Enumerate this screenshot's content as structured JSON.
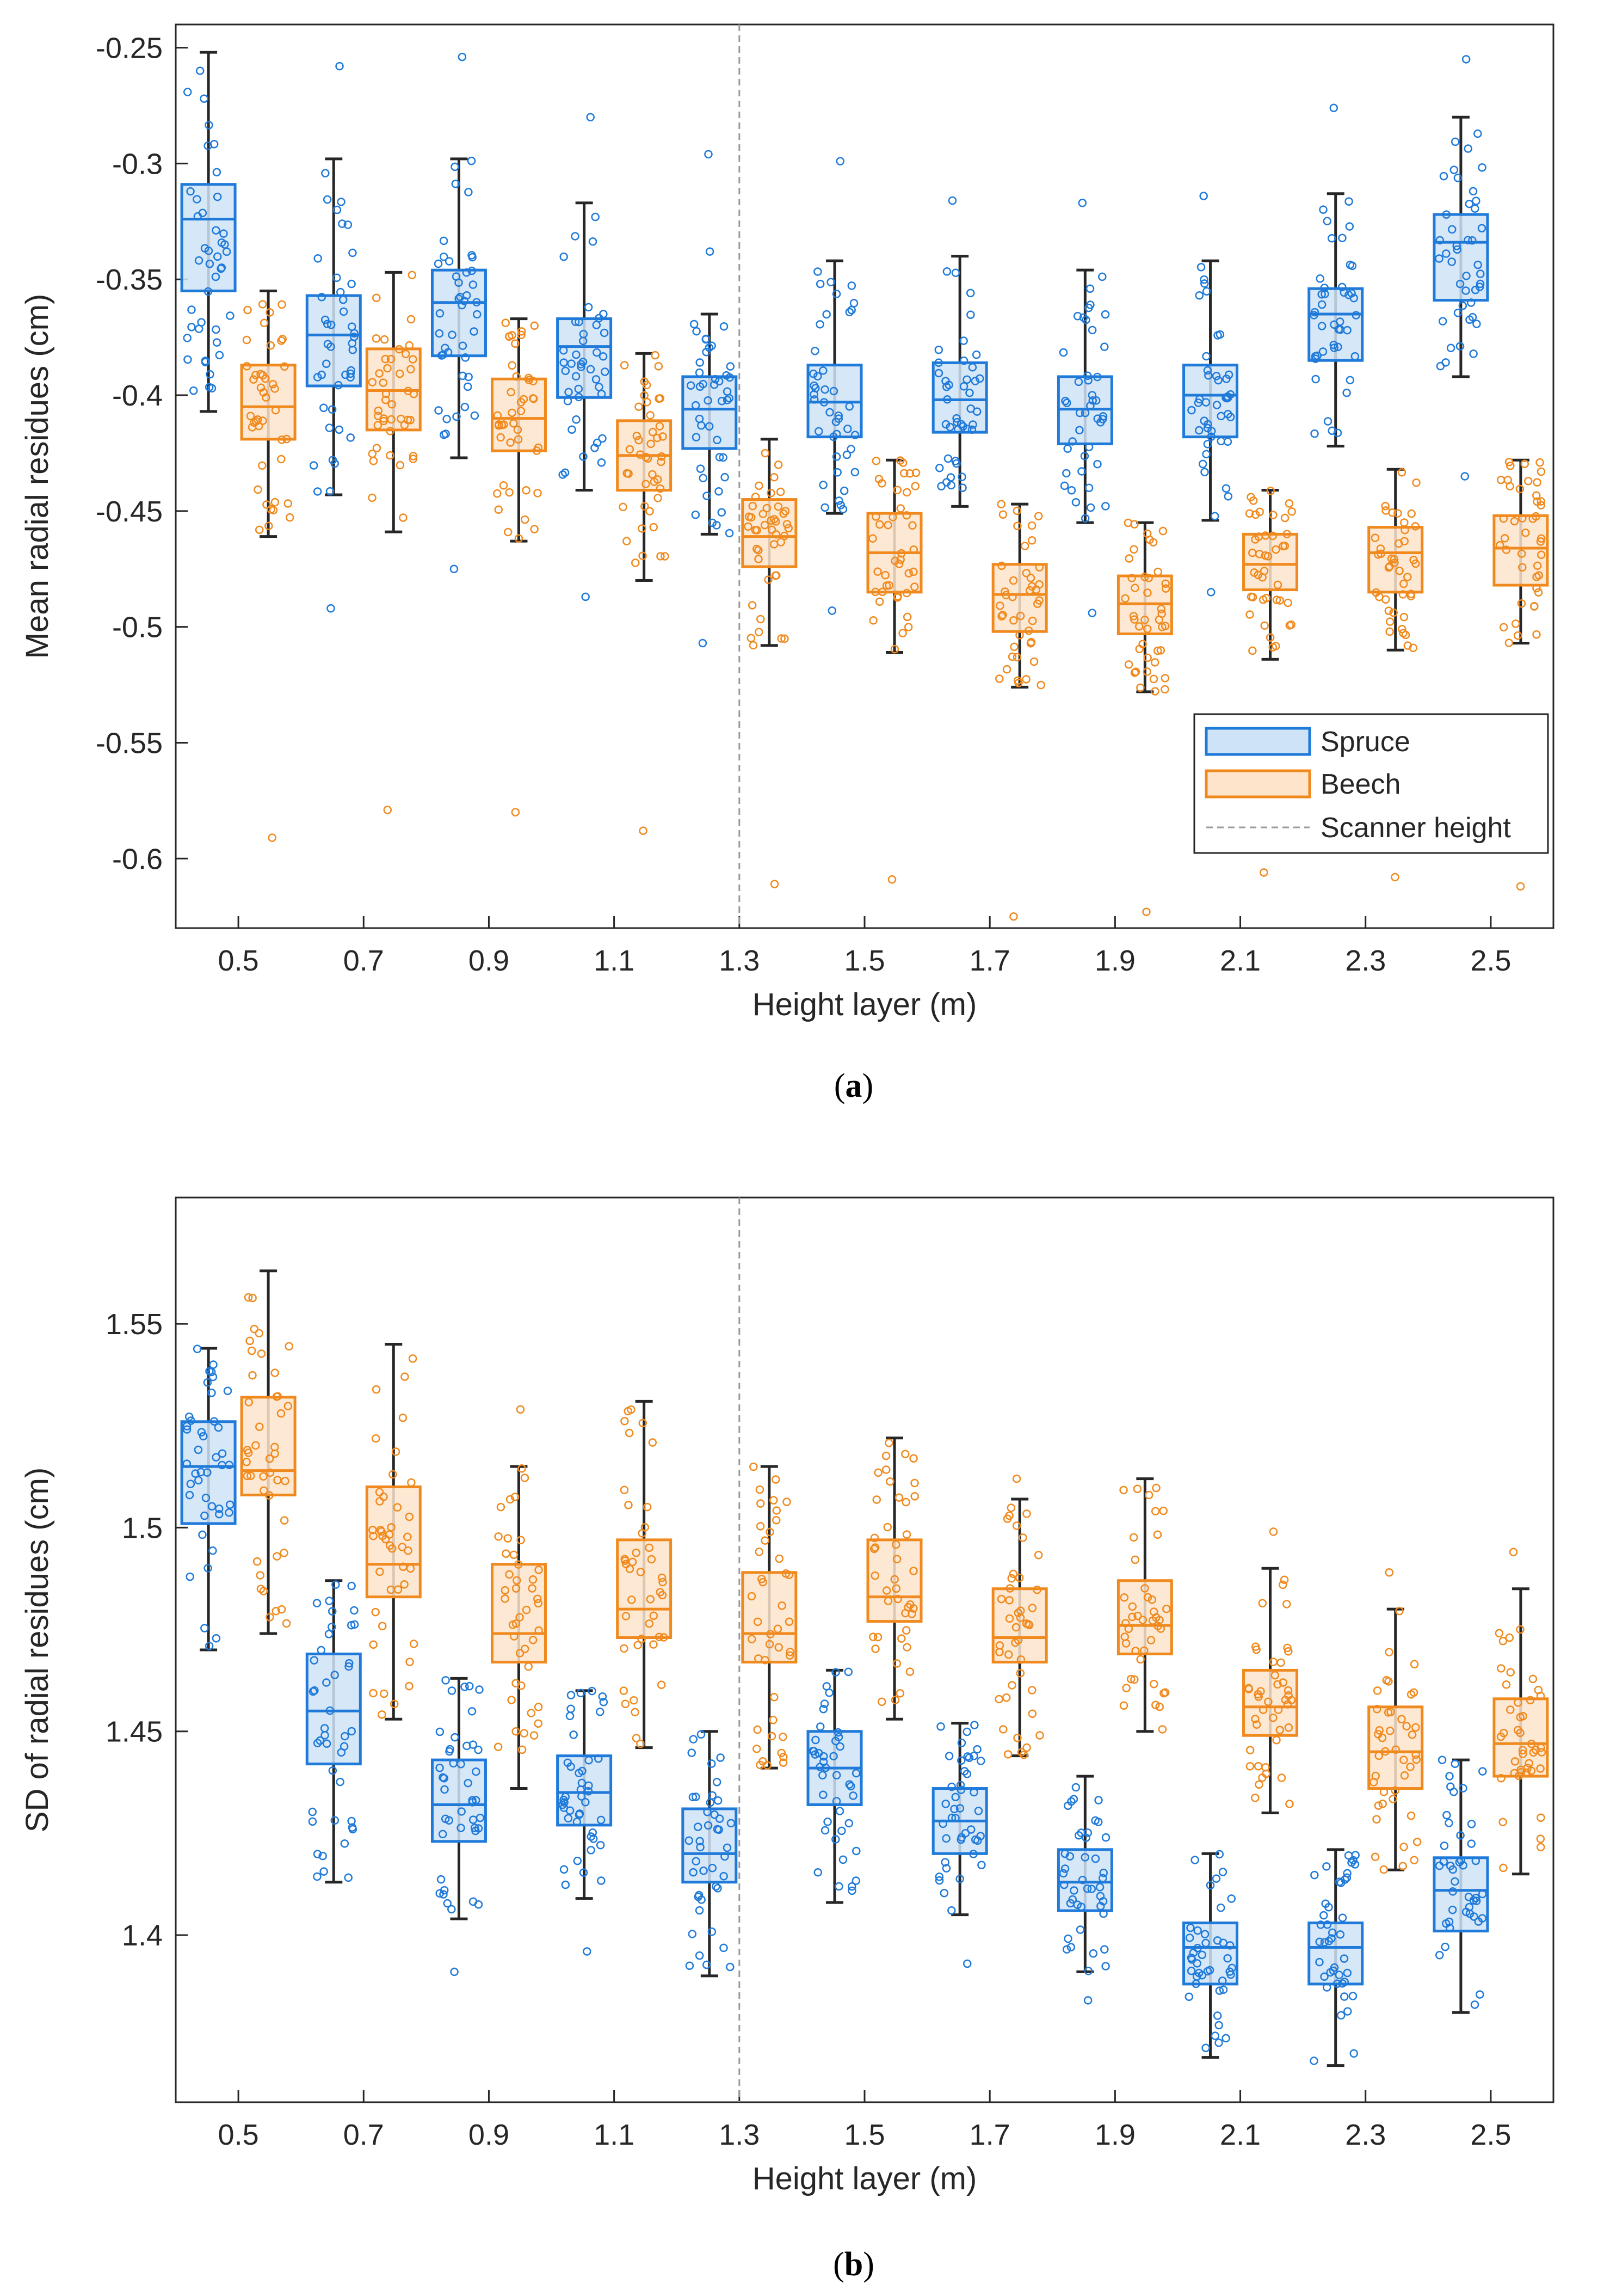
{
  "colors": {
    "spruce": "#1f7ad9",
    "spruce_fill": "#cfe3f7",
    "beech": "#f08a1e",
    "beech_fill": "#fde4cb",
    "whisker": "#262626",
    "axis": "#262626",
    "scanner": "#9a9a9a"
  },
  "chart_data": [
    {
      "id": "a",
      "type": "box",
      "caption_letter": "a",
      "xlabel": "Height layer (m)",
      "ylabel": "Mean radial residues (cm)",
      "categories": [
        "0.5",
        "0.7",
        "0.9",
        "1.1",
        "1.3",
        "1.5",
        "1.7",
        "1.9",
        "2.1",
        "2.3",
        "2.5"
      ],
      "ylim": [
        -0.63,
        -0.24
      ],
      "yticks": [
        -0.25,
        -0.3,
        -0.35,
        -0.4,
        -0.45,
        -0.5,
        -0.55,
        -0.6
      ],
      "ytick_labels": [
        "-0.25",
        "-0.3",
        "-0.35",
        "-0.4",
        "-0.45",
        "-0.5",
        "-0.55",
        "-0.6"
      ],
      "scanner_height_category": "1.3",
      "legend": {
        "position": "lower-right",
        "entries": [
          "Spruce",
          "Beech",
          "Scanner height"
        ]
      },
      "series": [
        {
          "name": "Spruce",
          "boxes": [
            {
              "q1": -0.355,
              "median": -0.324,
              "q3": -0.309,
              "whislo": -0.407,
              "whishi": -0.252,
              "outliers": []
            },
            {
              "q1": -0.396,
              "median": -0.374,
              "q3": -0.357,
              "whislo": -0.443,
              "whishi": -0.298,
              "outliers": [
                -0.492,
                -0.258
              ]
            },
            {
              "q1": -0.383,
              "median": -0.36,
              "q3": -0.346,
              "whislo": -0.427,
              "whishi": -0.298,
              "outliers": [
                -0.475,
                -0.254
              ]
            },
            {
              "q1": -0.401,
              "median": -0.379,
              "q3": -0.367,
              "whislo": -0.441,
              "whishi": -0.317,
              "outliers": [
                -0.487,
                -0.28
              ]
            },
            {
              "q1": -0.423,
              "median": -0.406,
              "q3": -0.392,
              "whislo": -0.46,
              "whishi": -0.365,
              "outliers": [
                -0.507,
                -0.338,
                -0.296
              ]
            },
            {
              "q1": -0.418,
              "median": -0.403,
              "q3": -0.387,
              "whislo": -0.451,
              "whishi": -0.342,
              "outliers": [
                -0.493,
                -0.299
              ]
            },
            {
              "q1": -0.416,
              "median": -0.402,
              "q3": -0.386,
              "whislo": -0.448,
              "whishi": -0.34,
              "outliers": [
                -0.316
              ]
            },
            {
              "q1": -0.421,
              "median": -0.406,
              "q3": -0.392,
              "whislo": -0.455,
              "whishi": -0.346,
              "outliers": [
                -0.494,
                -0.317
              ]
            },
            {
              "q1": -0.418,
              "median": -0.4,
              "q3": -0.387,
              "whislo": -0.454,
              "whishi": -0.342,
              "outliers": [
                -0.485,
                -0.314
              ]
            },
            {
              "q1": -0.385,
              "median": -0.365,
              "q3": -0.354,
              "whislo": -0.422,
              "whishi": -0.313,
              "outliers": [
                -0.276
              ]
            },
            {
              "q1": -0.359,
              "median": -0.334,
              "q3": -0.322,
              "whislo": -0.392,
              "whishi": -0.28,
              "outliers": [
                -0.435,
                -0.255
              ]
            }
          ]
        },
        {
          "name": "Beech",
          "boxes": [
            {
              "q1": -0.419,
              "median": -0.405,
              "q3": -0.387,
              "whislo": -0.461,
              "whishi": -0.355,
              "outliers": [
                -0.591
              ]
            },
            {
              "q1": -0.415,
              "median": -0.398,
              "q3": -0.38,
              "whislo": -0.459,
              "whishi": -0.347,
              "outliers": [
                -0.579
              ]
            },
            {
              "q1": -0.424,
              "median": -0.41,
              "q3": -0.393,
              "whislo": -0.463,
              "whishi": -0.367,
              "outliers": [
                -0.58
              ]
            },
            {
              "q1": -0.441,
              "median": -0.426,
              "q3": -0.411,
              "whislo": -0.48,
              "whishi": -0.382,
              "outliers": [
                -0.588
              ]
            },
            {
              "q1": -0.474,
              "median": -0.461,
              "q3": -0.445,
              "whislo": -0.508,
              "whishi": -0.419,
              "outliers": [
                -0.611
              ]
            },
            {
              "q1": -0.485,
              "median": -0.468,
              "q3": -0.451,
              "whislo": -0.511,
              "whishi": -0.428,
              "outliers": [
                -0.609
              ]
            },
            {
              "q1": -0.502,
              "median": -0.486,
              "q3": -0.473,
              "whislo": -0.526,
              "whishi": -0.447,
              "outliers": [
                -0.625
              ]
            },
            {
              "q1": -0.503,
              "median": -0.49,
              "q3": -0.478,
              "whislo": -0.528,
              "whishi": -0.455,
              "outliers": [
                -0.623
              ]
            },
            {
              "q1": -0.484,
              "median": -0.473,
              "q3": -0.46,
              "whislo": -0.514,
              "whishi": -0.441,
              "outliers": [
                -0.606
              ]
            },
            {
              "q1": -0.485,
              "median": -0.468,
              "q3": -0.457,
              "whislo": -0.51,
              "whishi": -0.432,
              "outliers": [
                -0.608
              ]
            },
            {
              "q1": -0.482,
              "median": -0.466,
              "q3": -0.452,
              "whislo": -0.507,
              "whishi": -0.428,
              "outliers": [
                -0.612
              ]
            }
          ]
        }
      ]
    },
    {
      "id": "b",
      "type": "box",
      "caption_letter": "b",
      "xlabel": "Height layer (m)",
      "ylabel": "SD of radial residues (cm)",
      "categories": [
        "0.5",
        "0.7",
        "0.9",
        "1.1",
        "1.3",
        "1.5",
        "1.7",
        "1.9",
        "2.1",
        "2.3",
        "2.5"
      ],
      "ylim": [
        1.359,
        1.581
      ],
      "yticks": [
        1.55,
        1.5,
        1.45,
        1.4
      ],
      "ytick_labels": [
        "1.55",
        "1.5",
        "1.45",
        "1.4"
      ],
      "scanner_height_category": "1.3",
      "series": [
        {
          "name": "Spruce",
          "boxes": [
            {
              "q1": 1.501,
              "median": 1.515,
              "q3": 1.526,
              "whislo": 1.47,
              "whishi": 1.544,
              "outliers": []
            },
            {
              "q1": 1.442,
              "median": 1.455,
              "q3": 1.469,
              "whislo": 1.413,
              "whishi": 1.487,
              "outliers": []
            },
            {
              "q1": 1.423,
              "median": 1.432,
              "q3": 1.443,
              "whislo": 1.404,
              "whishi": 1.463,
              "outliers": [
                1.391
              ]
            },
            {
              "q1": 1.427,
              "median": 1.435,
              "q3": 1.444,
              "whislo": 1.409,
              "whishi": 1.46,
              "outliers": [
                1.396
              ]
            },
            {
              "q1": 1.413,
              "median": 1.42,
              "q3": 1.431,
              "whislo": 1.39,
              "whishi": 1.45,
              "outliers": []
            },
            {
              "q1": 1.432,
              "median": 1.441,
              "q3": 1.45,
              "whislo": 1.408,
              "whishi": 1.465,
              "outliers": []
            },
            {
              "q1": 1.42,
              "median": 1.428,
              "q3": 1.436,
              "whislo": 1.405,
              "whishi": 1.452,
              "outliers": [
                1.393
              ]
            },
            {
              "q1": 1.406,
              "median": 1.413,
              "q3": 1.421,
              "whislo": 1.391,
              "whishi": 1.439,
              "outliers": [
                1.384
              ]
            },
            {
              "q1": 1.388,
              "median": 1.397,
              "q3": 1.403,
              "whislo": 1.37,
              "whishi": 1.42,
              "outliers": []
            },
            {
              "q1": 1.388,
              "median": 1.397,
              "q3": 1.403,
              "whislo": 1.368,
              "whishi": 1.421,
              "outliers": []
            },
            {
              "q1": 1.401,
              "median": 1.411,
              "q3": 1.419,
              "whislo": 1.381,
              "whishi": 1.443,
              "outliers": []
            }
          ]
        },
        {
          "name": "Beech",
          "boxes": [
            {
              "q1": 1.508,
              "median": 1.514,
              "q3": 1.532,
              "whislo": 1.474,
              "whishi": 1.563,
              "outliers": []
            },
            {
              "q1": 1.483,
              "median": 1.491,
              "q3": 1.51,
              "whislo": 1.453,
              "whishi": 1.545,
              "outliers": []
            },
            {
              "q1": 1.467,
              "median": 1.474,
              "q3": 1.491,
              "whislo": 1.436,
              "whishi": 1.515,
              "outliers": [
                1.529
              ]
            },
            {
              "q1": 1.473,
              "median": 1.48,
              "q3": 1.497,
              "whislo": 1.446,
              "whishi": 1.531,
              "outliers": []
            },
            {
              "q1": 1.467,
              "median": 1.474,
              "q3": 1.489,
              "whislo": 1.441,
              "whishi": 1.515,
              "outliers": []
            },
            {
              "q1": 1.477,
              "median": 1.483,
              "q3": 1.497,
              "whislo": 1.453,
              "whishi": 1.522,
              "outliers": []
            },
            {
              "q1": 1.467,
              "median": 1.473,
              "q3": 1.485,
              "whislo": 1.444,
              "whishi": 1.507,
              "outliers": [
                1.512
              ]
            },
            {
              "q1": 1.469,
              "median": 1.476,
              "q3": 1.487,
              "whislo": 1.45,
              "whishi": 1.512,
              "outliers": []
            },
            {
              "q1": 1.449,
              "median": 1.456,
              "q3": 1.465,
              "whislo": 1.43,
              "whishi": 1.49,
              "outliers": [
                1.499
              ]
            },
            {
              "q1": 1.436,
              "median": 1.445,
              "q3": 1.456,
              "whislo": 1.416,
              "whishi": 1.48,
              "outliers": [
                1.489
              ]
            },
            {
              "q1": 1.439,
              "median": 1.447,
              "q3": 1.458,
              "whislo": 1.415,
              "whishi": 1.485,
              "outliers": [
                1.494
              ]
            }
          ]
        }
      ]
    }
  ]
}
